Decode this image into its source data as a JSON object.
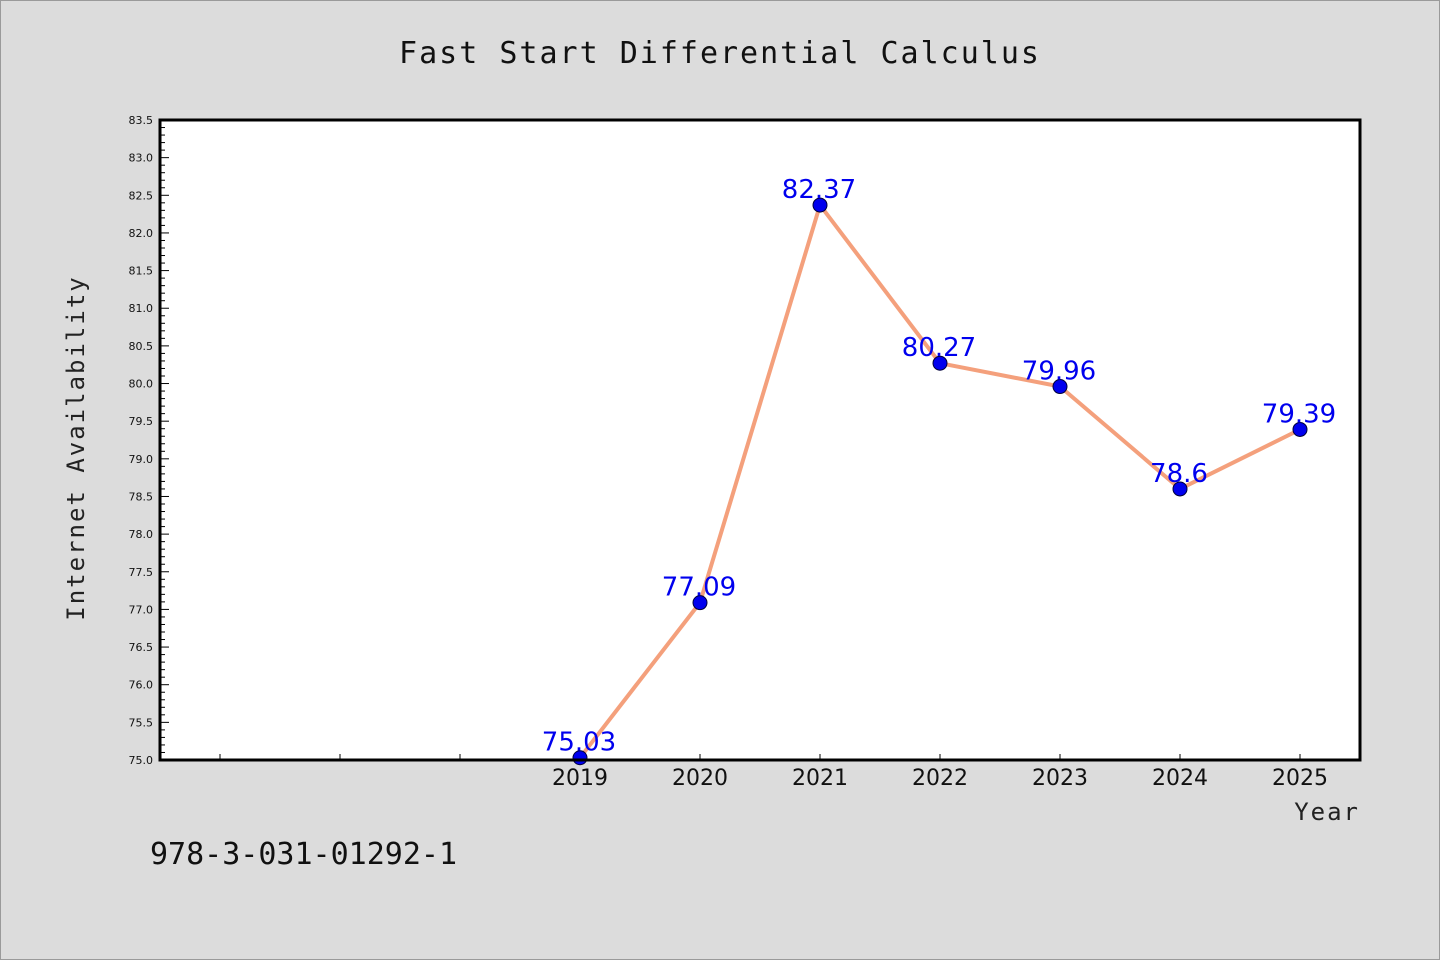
{
  "chart_data": {
    "type": "line",
    "title": "Fast Start Differential Calculus",
    "xlabel": "Year",
    "ylabel": "Internet Availability",
    "x": [
      "2019",
      "2020",
      "2021",
      "2022",
      "2023",
      "2024",
      "2025"
    ],
    "series": [
      {
        "values": [
          75.03,
          77.09,
          82.37,
          80.27,
          79.96,
          78.6,
          79.39
        ],
        "data_labels": [
          "75.03",
          "77.09",
          "82.37",
          "80.27",
          "79.96",
          "78.6",
          "79.39"
        ]
      }
    ],
    "ylim": [
      75.0,
      83.5
    ],
    "yticks": [
      "75.0",
      "75.5",
      "76.0",
      "76.5",
      "77.0",
      "77.5",
      "78.0",
      "78.5",
      "79.0",
      "79.5",
      "80.0",
      "80.5",
      "81.0",
      "81.5",
      "82.0",
      "82.5",
      "83.0",
      "83.5"
    ],
    "xlim": [
      2015.5,
      2025.5
    ],
    "grid": false,
    "line_color": "#f4a07c",
    "marker_color": "#0000ee",
    "label_color": "#0000ee",
    "background_color": "#dcdcdc",
    "plot_background": "#ffffff"
  },
  "footer": {
    "isbn": "978-3-031-01292-1"
  }
}
